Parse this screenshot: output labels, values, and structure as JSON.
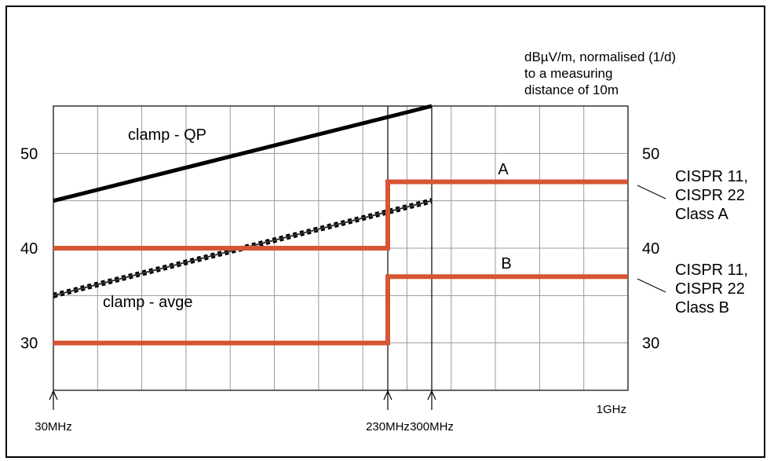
{
  "chart_data": {
    "type": "line",
    "unit_note": "dBµV/m, normalised (1/d)\nto a measuring\ndistance of 10m",
    "x_scale": "log",
    "x_range_mhz": [
      30,
      1000
    ],
    "y_range": [
      25,
      55
    ],
    "grid": true,
    "x_markers": [
      {
        "label": "30MHz",
        "x": 30
      },
      {
        "label": "230MHz",
        "x": 230
      },
      {
        "label": "300MHz",
        "x": 300
      }
    ],
    "x_end_label": "1GHz",
    "y_ticks": [
      {
        "label": "30",
        "value": 30
      },
      {
        "label": "40",
        "value": 40
      },
      {
        "label": "50",
        "value": 50
      }
    ],
    "series": [
      {
        "name": "clamp - QP",
        "style": "solid-black",
        "x": [
          30,
          300
        ],
        "y": [
          45,
          55
        ]
      },
      {
        "name": "clamp - avge",
        "style": "dotted-black",
        "x": [
          30,
          300
        ],
        "y": [
          35,
          45
        ]
      },
      {
        "name": "A",
        "style": "red-step",
        "x": [
          30,
          230,
          230,
          1000
        ],
        "y": [
          40,
          40,
          47,
          47
        ]
      },
      {
        "name": "B",
        "style": "red-step",
        "x": [
          30,
          230,
          230,
          1000
        ],
        "y": [
          30,
          30,
          37,
          37
        ]
      }
    ],
    "annotations": {
      "class_a": [
        "CISPR 11,",
        "CISPR 22",
        "Class A"
      ],
      "class_b": [
        "CISPR 11,",
        "CISPR 22",
        "Class B"
      ]
    },
    "colors": {
      "limit": "#d65533",
      "clamp": "#000000",
      "grid": "#9a9a9a"
    }
  }
}
